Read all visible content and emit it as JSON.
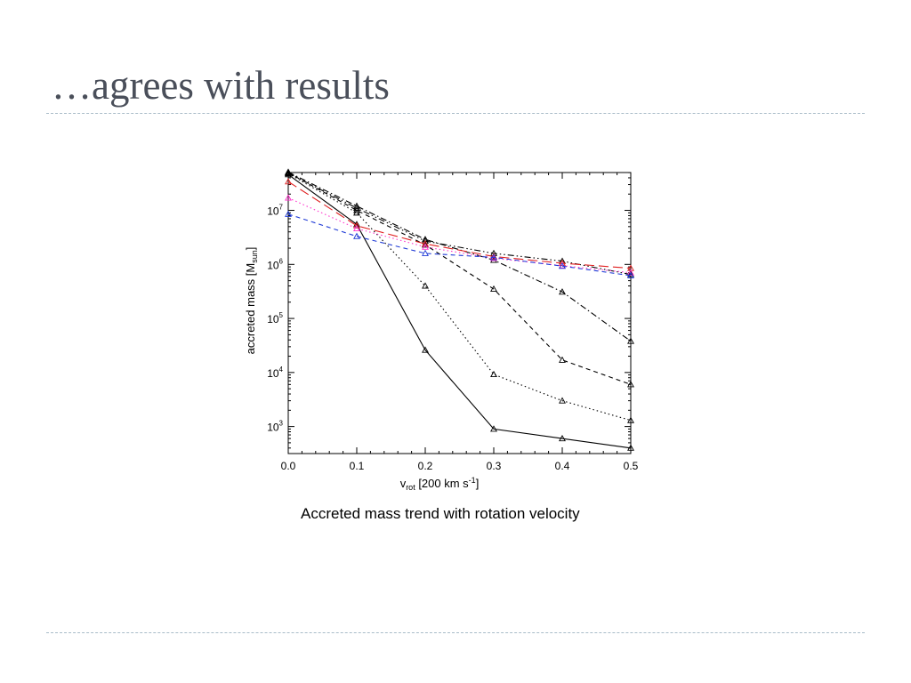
{
  "slide": {
    "title": "…agrees with results",
    "caption": "Accreted mass trend with rotation velocity"
  },
  "chart_data": {
    "type": "line",
    "title": "",
    "xlabel": {
      "main": "v",
      "sub": "rot",
      "units_prefix": " [200 km s",
      "units_sup": "-1",
      "units_suffix": "]"
    },
    "ylabel": {
      "main": "accreted mass [M",
      "sub": "sun",
      "suffix": "]"
    },
    "xlim": [
      0.0,
      0.5
    ],
    "ylim_log10": [
      2.5,
      7.7
    ],
    "yscale": "log",
    "x_ticks": [
      "0.0",
      "0.1",
      "0.2",
      "0.3",
      "0.4",
      "0.5"
    ],
    "y_ticks": [
      {
        "base": "10",
        "exp": "3"
      },
      {
        "base": "10",
        "exp": "4"
      },
      {
        "base": "10",
        "exp": "5"
      },
      {
        "base": "10",
        "exp": "6"
      },
      {
        "base": "10",
        "exp": "7"
      }
    ],
    "x": [
      0.0,
      0.1,
      0.2,
      0.3,
      0.4,
      0.5
    ],
    "series": [
      {
        "color": "#000000",
        "dash": "solid",
        "marker": "triangle",
        "values": [
          46000000,
          5500000,
          26000,
          900,
          600,
          400
        ]
      },
      {
        "color": "#000000",
        "dash": "dotted",
        "marker": "triangle",
        "values": [
          48000000,
          9000000,
          400000,
          9200,
          3000,
          1300
        ]
      },
      {
        "color": "#000000",
        "dash": "dashed",
        "marker": "triangle",
        "values": [
          50000000,
          10000000,
          2300000,
          350000,
          17000,
          6000
        ]
      },
      {
        "color": "#000000",
        "dash": "dashdot",
        "marker": "triangle",
        "values": [
          51000000,
          12000000,
          2900000,
          1200000,
          310000,
          38000
        ]
      },
      {
        "color": "#000000",
        "dash": "dashdotdot",
        "marker": "triangle",
        "values": [
          49000000,
          11000000,
          2700000,
          1600000,
          1150000,
          650000
        ]
      },
      {
        "color": "#e02020",
        "dash": "longdash",
        "marker": "triangle",
        "values": [
          34000000,
          5200000,
          2400000,
          1400000,
          1050000,
          850000
        ]
      },
      {
        "color": "#ff33cc",
        "dash": "dotted",
        "marker": "triangle",
        "values": [
          17000000,
          4600000,
          2100000,
          1300000,
          950000,
          700000
        ]
      },
      {
        "color": "#1f3ad6",
        "dash": "dashed",
        "marker": "triangle",
        "values": [
          8500000,
          3300000,
          1600000,
          1350000,
          930000,
          620000
        ]
      }
    ]
  }
}
